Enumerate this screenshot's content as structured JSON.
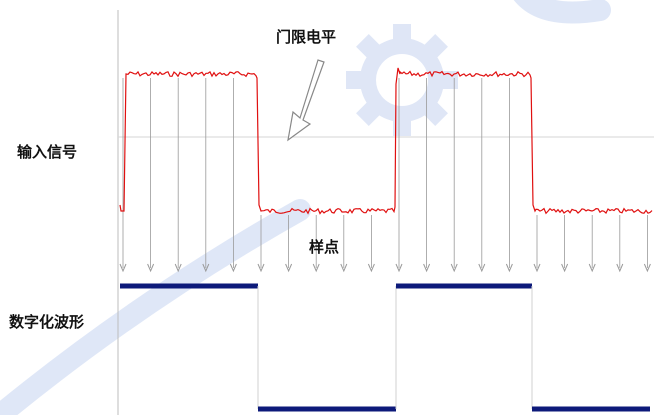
{
  "labels": {
    "threshold_level": "门限电平",
    "input_signal": "输入信号",
    "sample_points": "样点",
    "digitized_waveform": "数字化波形"
  },
  "signal": {
    "high_intervals": [
      [
        0,
        1
      ],
      [
        2,
        3
      ]
    ],
    "sample_count": 20,
    "digital_levels": [
      1,
      0,
      1,
      0
    ],
    "colors": {
      "analog": "#e01010",
      "digital": "#0d1a7a",
      "threshold": "#d6d6d6",
      "axis": "#bdbdbd",
      "sample_arrow": "#9a9a9a"
    }
  },
  "watermark": {
    "icon": "gear-watermark-icon",
    "color": "#c5d3f0"
  }
}
